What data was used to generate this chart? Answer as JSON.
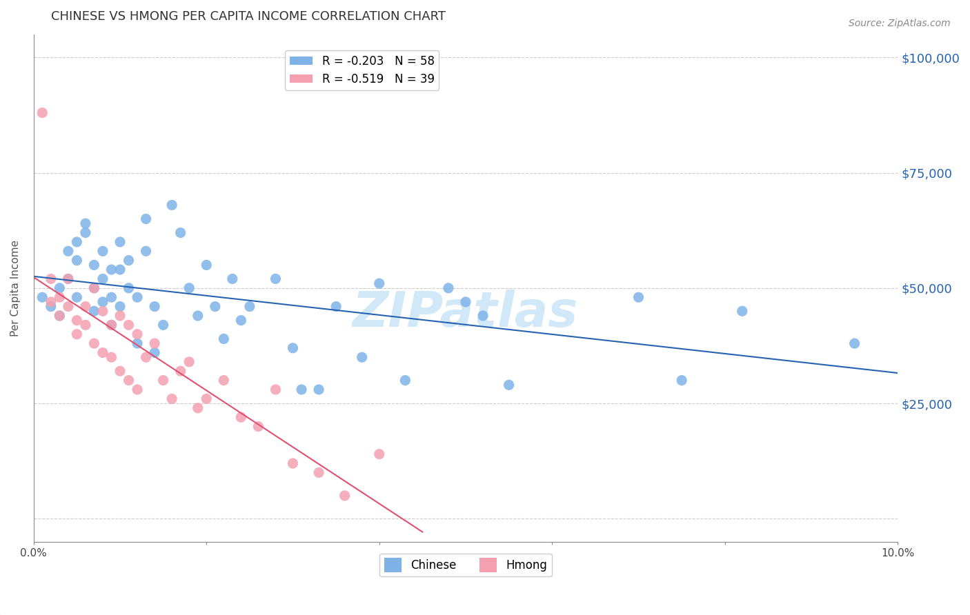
{
  "title": "CHINESE VS HMONG PER CAPITA INCOME CORRELATION CHART",
  "source": "Source: ZipAtlas.com",
  "xlabel": "",
  "ylabel": "Per Capita Income",
  "xlim": [
    0.0,
    0.1
  ],
  "ylim": [
    -5000,
    105000
  ],
  "yticks": [
    0,
    25000,
    50000,
    75000,
    100000
  ],
  "ytick_labels": [
    "",
    "$25,000",
    "$50,000",
    "$75,000",
    "$100,000"
  ],
  "xticks": [
    0.0,
    0.02,
    0.04,
    0.06,
    0.08,
    0.1
  ],
  "xtick_labels": [
    "0.0%",
    "",
    "",
    "",
    "",
    "10.0%"
  ],
  "chinese_R": -0.203,
  "chinese_N": 58,
  "hmong_R": -0.519,
  "hmong_N": 39,
  "chinese_color": "#7fb3e8",
  "hmong_color": "#f4a0b0",
  "chinese_line_color": "#2563b0",
  "hmong_line_color": "#e05070",
  "watermark": "ZIPatlas",
  "watermark_color": "#d0e8f8",
  "chinese_x": [
    0.001,
    0.002,
    0.003,
    0.003,
    0.004,
    0.004,
    0.005,
    0.005,
    0.005,
    0.006,
    0.006,
    0.007,
    0.007,
    0.007,
    0.008,
    0.008,
    0.008,
    0.009,
    0.009,
    0.009,
    0.01,
    0.01,
    0.01,
    0.011,
    0.011,
    0.012,
    0.012,
    0.013,
    0.013,
    0.014,
    0.014,
    0.015,
    0.016,
    0.017,
    0.018,
    0.019,
    0.02,
    0.021,
    0.022,
    0.023,
    0.024,
    0.025,
    0.028,
    0.03,
    0.031,
    0.033,
    0.035,
    0.038,
    0.04,
    0.043,
    0.048,
    0.05,
    0.052,
    0.055,
    0.07,
    0.075,
    0.082,
    0.095
  ],
  "chinese_y": [
    48000,
    46000,
    50000,
    44000,
    58000,
    52000,
    60000,
    56000,
    48000,
    64000,
    62000,
    55000,
    50000,
    45000,
    58000,
    52000,
    47000,
    54000,
    48000,
    42000,
    60000,
    54000,
    46000,
    56000,
    50000,
    48000,
    38000,
    65000,
    58000,
    46000,
    36000,
    42000,
    68000,
    62000,
    50000,
    44000,
    55000,
    46000,
    39000,
    52000,
    43000,
    46000,
    52000,
    37000,
    28000,
    28000,
    46000,
    35000,
    51000,
    30000,
    50000,
    47000,
    44000,
    29000,
    48000,
    30000,
    45000,
    38000
  ],
  "hmong_x": [
    0.001,
    0.002,
    0.002,
    0.003,
    0.003,
    0.004,
    0.004,
    0.005,
    0.005,
    0.006,
    0.006,
    0.007,
    0.007,
    0.008,
    0.008,
    0.009,
    0.009,
    0.01,
    0.01,
    0.011,
    0.011,
    0.012,
    0.012,
    0.013,
    0.014,
    0.015,
    0.016,
    0.017,
    0.018,
    0.019,
    0.02,
    0.022,
    0.024,
    0.026,
    0.028,
    0.03,
    0.033,
    0.036,
    0.04
  ],
  "hmong_y": [
    88000,
    52000,
    47000,
    48000,
    44000,
    52000,
    46000,
    43000,
    40000,
    46000,
    42000,
    50000,
    38000,
    45000,
    36000,
    42000,
    35000,
    44000,
    32000,
    42000,
    30000,
    40000,
    28000,
    35000,
    38000,
    30000,
    26000,
    32000,
    34000,
    24000,
    26000,
    30000,
    22000,
    20000,
    28000,
    12000,
    10000,
    5000,
    14000
  ]
}
